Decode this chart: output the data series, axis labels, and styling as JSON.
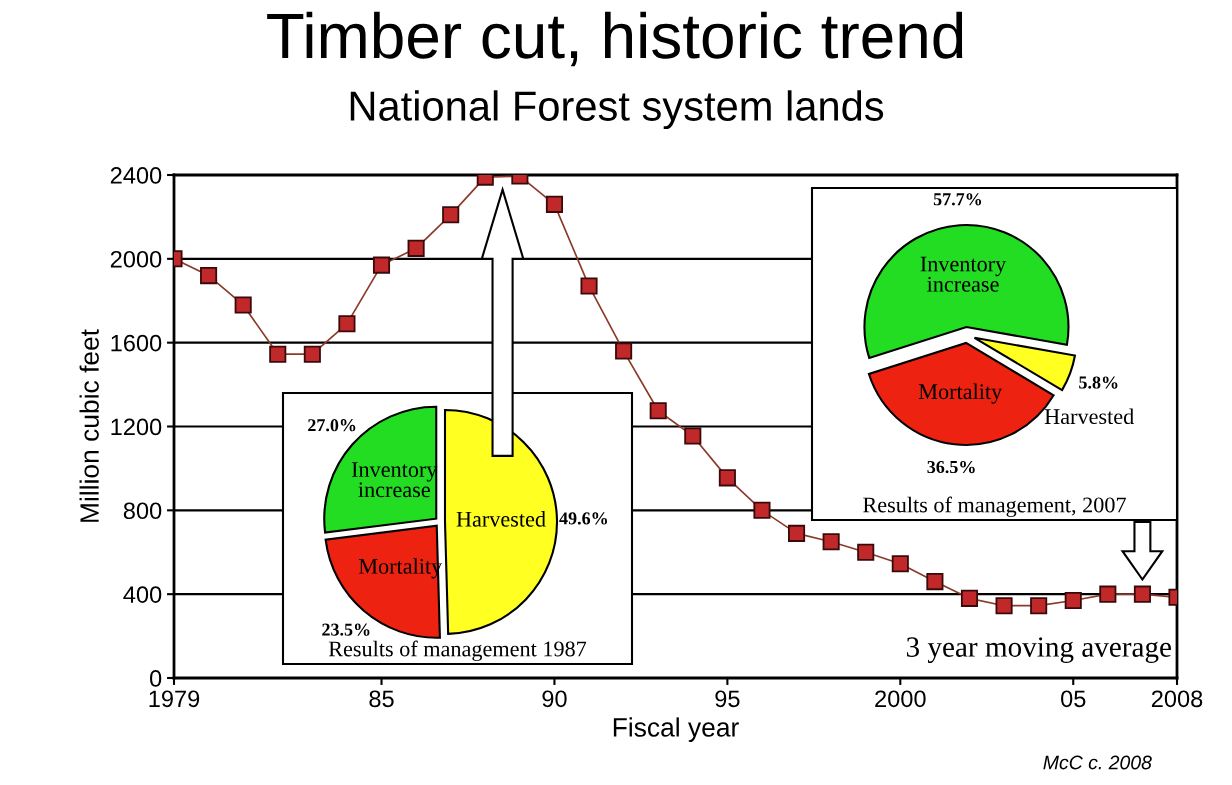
{
  "chart_data": [
    {
      "type": "line",
      "title": "Timber cut, historic trend",
      "subtitle": "National Forest system lands",
      "xlabel": "Fiscal year",
      "ylabel": "Million cubic feet",
      "x": [
        1979,
        1980,
        1981,
        1982,
        1983,
        1984,
        1985,
        1986,
        1987,
        1988,
        1989,
        1990,
        1991,
        1992,
        1993,
        1994,
        1995,
        1996,
        1997,
        1998,
        1999,
        2000,
        2001,
        2002,
        2003,
        2004,
        2005,
        2006,
        2007,
        2008
      ],
      "series": [
        {
          "color": "#c0282a",
          "values": [
            2000,
            1920,
            1780,
            1545,
            1545,
            1690,
            1970,
            2050,
            2210,
            2390,
            2395,
            2260,
            1870,
            1560,
            1275,
            1155,
            955,
            800,
            690,
            650,
            600,
            545,
            460,
            380,
            345,
            345,
            370,
            400,
            400,
            385
          ]
        }
      ],
      "xlim": [
        1979,
        2008
      ],
      "ylim": [
        0,
        2400
      ],
      "xticks": [
        1979,
        {
          "value": 1985,
          "label": "85"
        },
        {
          "value": 1990,
          "label": "90"
        },
        {
          "value": 1995,
          "label": "95"
        },
        2000,
        {
          "value": 2005,
          "label": "05"
        },
        2008
      ],
      "yticks": [
        0,
        400,
        800,
        1200,
        1600,
        2000,
        2400
      ],
      "grid": "y",
      "marker": "square",
      "line_style": "solid",
      "annotations": [
        "3 year moving average",
        "McC c. 2008"
      ]
    },
    {
      "type": "pie",
      "title": "Results of management 1987",
      "categories": [
        "Inventory\nincrease",
        "Mortality",
        "Harvested"
      ],
      "values": [
        27.0,
        23.5,
        49.6
      ],
      "colors": [
        "#22dd22",
        "#ee2211",
        "#ffff22"
      ],
      "value_labels": [
        "27.0%",
        "23.5%",
        "49.6%"
      ]
    },
    {
      "type": "pie",
      "title": "Results of management, 2007",
      "categories": [
        "Inventory\nincrease",
        "Mortality",
        "Harvested"
      ],
      "values": [
        57.7,
        36.5,
        5.8
      ],
      "colors": [
        "#22dd22",
        "#ee2211",
        "#ffff22"
      ],
      "value_labels": [
        "57.7%",
        "36.5%",
        "5.8%"
      ]
    }
  ]
}
